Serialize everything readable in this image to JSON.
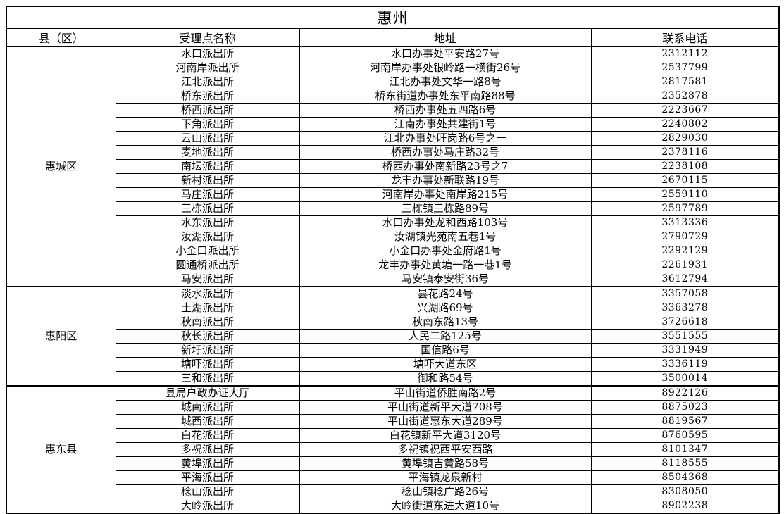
{
  "title": "惠州",
  "columns": {
    "district": "县（区）",
    "station": "受理点名称",
    "address": "地址",
    "phone": "联系电话"
  },
  "groups": [
    {
      "district": "惠城区",
      "rows": [
        {
          "name": "水口派出所",
          "address": "水口办事处平安路27号",
          "phone": "2312112"
        },
        {
          "name": "河南岸派出所",
          "address": "河南岸办事处银岭路一横街26号",
          "phone": "2537799"
        },
        {
          "name": "江北派出所",
          "address": "江北办事处文华一路8号",
          "phone": "2817581"
        },
        {
          "name": "桥东派出所",
          "address": "桥东街道办事处东平南路88号",
          "phone": "2352878"
        },
        {
          "name": "桥西派出所",
          "address": "桥西办事处五四路6号",
          "phone": "2223667"
        },
        {
          "name": "下角派出所",
          "address": "江南办事处共建街1号",
          "phone": "2240802"
        },
        {
          "name": "云山派出所",
          "address": "江北办事处旺岗路6号之一",
          "phone": "2829030"
        },
        {
          "name": "麦地派出所",
          "address": "桥西办事处马庄路32号",
          "phone": "2378116"
        },
        {
          "name": "南坛派出所",
          "address": "桥西办事处南新路23号之7",
          "phone": "2238108"
        },
        {
          "name": "新村派出所",
          "address": "龙丰办事处新联路19号",
          "phone": "2670115"
        },
        {
          "name": "马庄派出所",
          "address": "河南岸办事处南岸路215号",
          "phone": "2559110"
        },
        {
          "name": "三栋派出所",
          "address": "三栋镇三栋路89号",
          "phone": "2597789"
        },
        {
          "name": "水东派出所",
          "address": "水口办事处龙和西路103号",
          "phone": "3313336"
        },
        {
          "name": "汝湖派出所",
          "address": "汝湖镇光苑南五巷1号",
          "phone": "2790729"
        },
        {
          "name": "小金口派出所",
          "address": "小金口办事处金府路1号",
          "phone": "2292129"
        },
        {
          "name": "圆通桥派出所",
          "address": "龙丰办事处黄塘一路一巷1号",
          "phone": "2261931"
        },
        {
          "name": "马安派出所",
          "address": "马安镇泰安街36号",
          "phone": "3612794"
        }
      ]
    },
    {
      "district": "惠阳区",
      "rows": [
        {
          "name": "淡水派出所",
          "address": "昙花路24号",
          "phone": "3357058"
        },
        {
          "name": "土湖派出所",
          "address": "兴湖路69号",
          "phone": "3363278"
        },
        {
          "name": "秋南派出所",
          "address": "秋南东路13号",
          "phone": "3726618"
        },
        {
          "name": "秋长派出所",
          "address": "人民二路125号",
          "phone": "3551555"
        },
        {
          "name": "新圩派出所",
          "address": "国信路6号",
          "phone": "3331949"
        },
        {
          "name": "塘吓派出所",
          "address": "塘吓大道东区",
          "phone": "3336119"
        },
        {
          "name": "三和派出所",
          "address": "御和路54号",
          "phone": "3500014"
        }
      ]
    },
    {
      "district": "惠东县",
      "rows": [
        {
          "name": "县局户政办证大厅",
          "address": "平山街道侨胜南路2号",
          "phone": "8922126"
        },
        {
          "name": "城南派出所",
          "address": "平山街道新平大道708号",
          "phone": "8875023"
        },
        {
          "name": "城西派出所",
          "address": "平山街道惠东大道289号",
          "phone": "8819567"
        },
        {
          "name": "白花派出所",
          "address": "白花镇新平大道3120号",
          "phone": "8760595"
        },
        {
          "name": "多祝派出所",
          "address": "多祝镇祝西平安西路",
          "phone": "8101347"
        },
        {
          "name": "黄埠派出所",
          "address": "黄埠镇吉黄路58号",
          "phone": "8118555"
        },
        {
          "name": "平海派出所",
          "address": "平海镇龙泉新村",
          "phone": "8504368"
        },
        {
          "name": "稔山派出所",
          "address": "稔山镇稔广路26号",
          "phone": "8308050"
        },
        {
          "name": "大岭派出所",
          "address": "大岭街道东进大道10号",
          "phone": "8902238"
        }
      ]
    }
  ]
}
